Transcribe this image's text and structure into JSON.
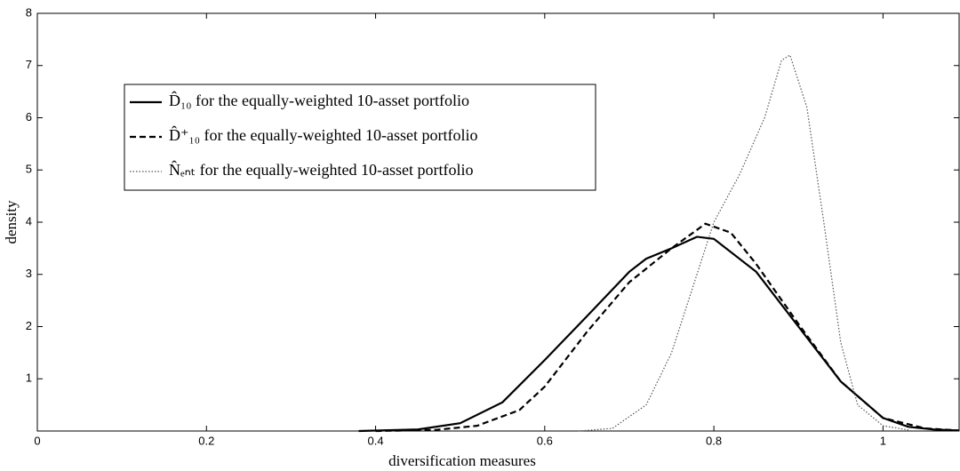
{
  "chart_data": {
    "type": "line",
    "x_label": "diversification measures",
    "y_label": "density",
    "xlim": [
      0,
      1.09
    ],
    "ylim": [
      0,
      8
    ],
    "xticks": [
      0,
      0.2,
      0.4,
      0.6,
      0.8,
      1
    ],
    "yticks": [
      1,
      2,
      3,
      4,
      5,
      6,
      7,
      8
    ],
    "legend": "upper left",
    "series": [
      {
        "name": "D̂₁₀ for the equally-weighted 10-asset portfolio",
        "color": "#000000",
        "style": "solid",
        "x": [
          0.38,
          0.45,
          0.5,
          0.55,
          0.6,
          0.65,
          0.7,
          0.72,
          0.75,
          0.78,
          0.8,
          0.85,
          0.9,
          0.95,
          1.0,
          1.03,
          1.06,
          1.09
        ],
        "values": [
          0,
          0.03,
          0.15,
          0.55,
          1.36,
          2.2,
          3.05,
          3.3,
          3.5,
          3.72,
          3.68,
          3.05,
          2.0,
          0.95,
          0.25,
          0.08,
          0.03,
          0.01
        ]
      },
      {
        "name": "D̂⁺₁₀ for the equally-weighted 10-asset portfolio",
        "color": "#000000",
        "style": "dashed",
        "x": [
          0.4,
          0.47,
          0.52,
          0.57,
          0.6,
          0.65,
          0.7,
          0.75,
          0.79,
          0.82,
          0.85,
          0.9,
          0.95,
          1.0,
          1.05,
          1.09
        ],
        "values": [
          0,
          0.02,
          0.1,
          0.4,
          0.85,
          1.9,
          2.85,
          3.5,
          3.97,
          3.8,
          3.2,
          2.05,
          0.95,
          0.25,
          0.05,
          0.01
        ]
      },
      {
        "name": "N̂ₑₙₜ for the equally-weighted 10-asset portfolio",
        "color": "#555555",
        "style": "dotted",
        "x": [
          0.64,
          0.68,
          0.72,
          0.75,
          0.78,
          0.8,
          0.83,
          0.86,
          0.88,
          0.89,
          0.91,
          0.93,
          0.95,
          0.97,
          1.0,
          1.03
        ],
        "values": [
          0,
          0.05,
          0.5,
          1.5,
          3.0,
          4.0,
          4.9,
          6.0,
          7.1,
          7.2,
          6.2,
          4.0,
          1.7,
          0.5,
          0.1,
          0.02
        ]
      }
    ]
  }
}
